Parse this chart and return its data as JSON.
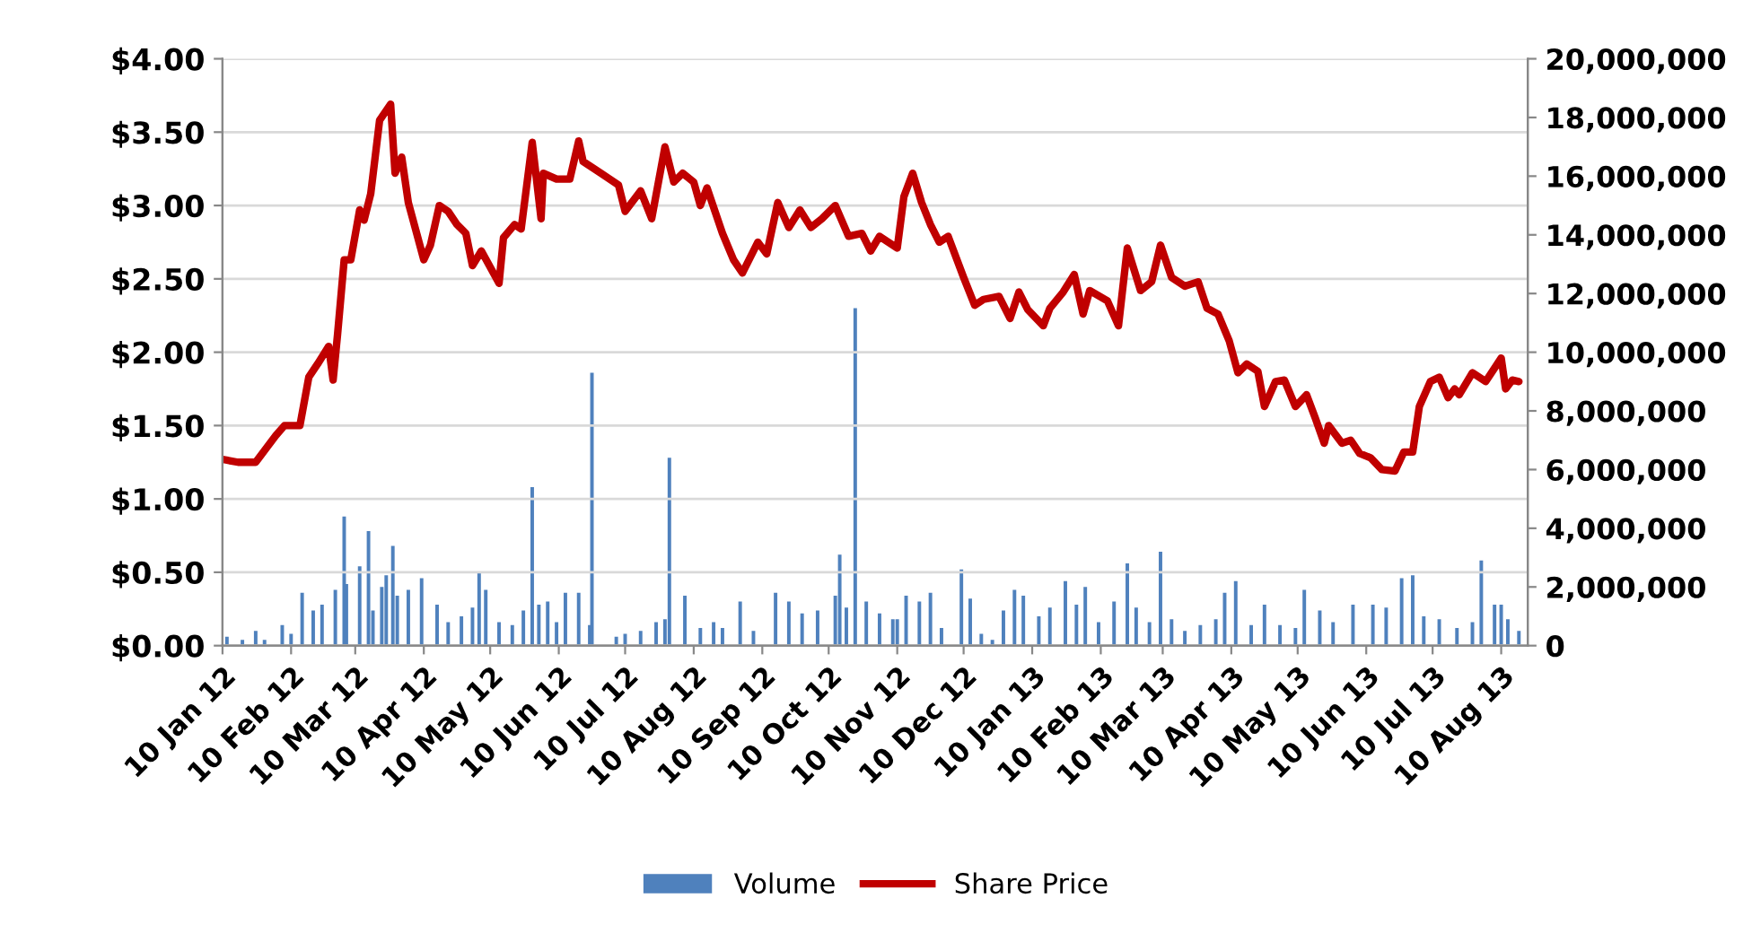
{
  "chart_data": {
    "type": "line",
    "xlim": [
      "2012-01-10",
      "2013-08-22"
    ],
    "xticks": [
      {
        "value": "2012-01-10",
        "label": "10 Jan 12"
      },
      {
        "value": "2012-02-10",
        "label": "10 Feb 12"
      },
      {
        "value": "2012-03-10",
        "label": "10 Mar 12"
      },
      {
        "value": "2012-04-10",
        "label": "10 Apr 12"
      },
      {
        "value": "2012-05-10",
        "label": "10 May 12"
      },
      {
        "value": "2012-06-10",
        "label": "10 Jun 12"
      },
      {
        "value": "2012-07-10",
        "label": "10 Jul 12"
      },
      {
        "value": "2012-08-10",
        "label": "10 Aug 12"
      },
      {
        "value": "2012-09-10",
        "label": "10 Sep 12"
      },
      {
        "value": "2012-10-10",
        "label": "10 Oct 12"
      },
      {
        "value": "2012-11-10",
        "label": "10 Nov 12"
      },
      {
        "value": "2012-12-10",
        "label": "10 Dec 12"
      },
      {
        "value": "2013-01-10",
        "label": "10 Jan 13"
      },
      {
        "value": "2013-02-10",
        "label": "10 Feb 13"
      },
      {
        "value": "2013-03-10",
        "label": "10 Mar 13"
      },
      {
        "value": "2013-04-10",
        "label": "10 Apr 13"
      },
      {
        "value": "2013-05-10",
        "label": "10 May 13"
      },
      {
        "value": "2013-06-10",
        "label": "10 Jun 13"
      },
      {
        "value": "2013-07-10",
        "label": "10 Jul 13"
      },
      {
        "value": "2013-08-10",
        "label": "10 Aug 13"
      }
    ],
    "ylim": [
      0,
      4
    ],
    "yticks": [
      {
        "value": 0,
        "label": "$0.00"
      },
      {
        "value": 0.5,
        "label": "$0.50"
      },
      {
        "value": 1,
        "label": "$1.00"
      },
      {
        "value": 1.5,
        "label": "$1.50"
      },
      {
        "value": 2,
        "label": "$2.00"
      },
      {
        "value": 2.5,
        "label": "$2.50"
      },
      {
        "value": 3,
        "label": "$3.00"
      },
      {
        "value": 3.5,
        "label": "$3.50"
      },
      {
        "value": 4,
        "label": "$4.00"
      }
    ],
    "y2lim": [
      0,
      20000000
    ],
    "y2ticks": [
      {
        "value": 0,
        "label": "0"
      },
      {
        "value": 2000000,
        "label": "2,000,000"
      },
      {
        "value": 4000000,
        "label": "4,000,000"
      },
      {
        "value": 6000000,
        "label": "6,000,000"
      },
      {
        "value": 8000000,
        "label": "8,000,000"
      },
      {
        "value": 10000000,
        "label": "10,000,000"
      },
      {
        "value": 12000000,
        "label": "12,000,000"
      },
      {
        "value": 14000000,
        "label": "14,000,000"
      },
      {
        "value": 16000000,
        "label": "16,000,000"
      },
      {
        "value": 18000000,
        "label": "18,000,000"
      },
      {
        "value": 20000000,
        "label": "20,000,000"
      }
    ],
    "grid": "y",
    "legend": "bottom",
    "series": [
      {
        "name": "Volume",
        "type": "bar",
        "axis": "y2",
        "color": "#4f81bd",
        "x": [
          "2012-01-12",
          "2012-01-19",
          "2012-01-25",
          "2012-01-29",
          "2012-02-06",
          "2012-02-10",
          "2012-02-15",
          "2012-02-20",
          "2012-02-24",
          "2012-03-01",
          "2012-03-05",
          "2012-03-06",
          "2012-03-12",
          "2012-03-16",
          "2012-03-18",
          "2012-03-22",
          "2012-03-24",
          "2012-03-27",
          "2012-03-29",
          "2012-04-03",
          "2012-04-09",
          "2012-04-16",
          "2012-04-21",
          "2012-04-27",
          "2012-05-02",
          "2012-05-05",
          "2012-05-08",
          "2012-05-14",
          "2012-05-20",
          "2012-05-25",
          "2012-05-29",
          "2012-06-01",
          "2012-06-05",
          "2012-06-09",
          "2012-06-13",
          "2012-06-19",
          "2012-06-24",
          "2012-06-25",
          "2012-07-06",
          "2012-07-10",
          "2012-07-17",
          "2012-07-24",
          "2012-07-28",
          "2012-07-30",
          "2012-08-06",
          "2012-08-13",
          "2012-08-19",
          "2012-08-23",
          "2012-08-31",
          "2012-09-06",
          "2012-09-16",
          "2012-09-22",
          "2012-09-28",
          "2012-10-05",
          "2012-10-13",
          "2012-10-15",
          "2012-10-18",
          "2012-10-22",
          "2012-10-27",
          "2012-11-02",
          "2012-11-08",
          "2012-11-10",
          "2012-11-14",
          "2012-11-20",
          "2012-11-25",
          "2012-11-30",
          "2012-12-09",
          "2012-12-13",
          "2012-12-18",
          "2012-12-23",
          "2012-12-28",
          "2013-01-02",
          "2013-01-06",
          "2013-01-13",
          "2013-01-18",
          "2013-01-25",
          "2013-01-30",
          "2013-02-03",
          "2013-02-09",
          "2013-02-16",
          "2013-02-22",
          "2013-02-26",
          "2013-03-04",
          "2013-03-09",
          "2013-03-14",
          "2013-03-20",
          "2013-03-27",
          "2013-04-03",
          "2013-04-07",
          "2013-04-12",
          "2013-04-19",
          "2013-04-25",
          "2013-05-02",
          "2013-05-09",
          "2013-05-13",
          "2013-05-20",
          "2013-05-26",
          "2013-06-04",
          "2013-06-13",
          "2013-06-19",
          "2013-06-26",
          "2013-07-01",
          "2013-07-06",
          "2013-07-13",
          "2013-07-21",
          "2013-07-28",
          "2013-08-01",
          "2013-08-07",
          "2013-08-10",
          "2013-08-13",
          "2013-08-18"
        ],
        "values": [
          300000,
          200000,
          500000,
          200000,
          700000,
          400000,
          1800000,
          1200000,
          1400000,
          1900000,
          4400000,
          2100000,
          2700000,
          3900000,
          1200000,
          2000000,
          2400000,
          3400000,
          1700000,
          1900000,
          2300000,
          1400000,
          800000,
          1000000,
          1300000,
          2500000,
          1900000,
          800000,
          700000,
          1200000,
          5400000,
          1400000,
          1500000,
          800000,
          1800000,
          1800000,
          700000,
          9300000,
          300000,
          400000,
          500000,
          800000,
          900000,
          6400000,
          1700000,
          600000,
          800000,
          600000,
          1500000,
          500000,
          1800000,
          1500000,
          1100000,
          1200000,
          1700000,
          3100000,
          1300000,
          11500000,
          1500000,
          1100000,
          900000,
          900000,
          1700000,
          1500000,
          1800000,
          600000,
          2600000,
          1600000,
          400000,
          200000,
          1200000,
          1900000,
          1700000,
          1000000,
          1300000,
          2200000,
          1400000,
          2000000,
          800000,
          1500000,
          2800000,
          1300000,
          800000,
          3200000,
          900000,
          500000,
          700000,
          900000,
          1800000,
          2200000,
          700000,
          1400000,
          700000,
          600000,
          1900000,
          1200000,
          800000,
          1400000,
          1400000,
          1300000,
          2300000,
          2400000,
          1000000,
          900000,
          600000,
          800000,
          2900000,
          1400000,
          1400000,
          900000,
          500000
        ]
      },
      {
        "name": "Share Price",
        "axis": "y",
        "color": "#c00000",
        "x": [
          "2012-01-10",
          "2012-01-17",
          "2012-01-25",
          "2012-02-03",
          "2012-02-07",
          "2012-02-14",
          "2012-02-18",
          "2012-02-22",
          "2012-02-27",
          "2012-02-29",
          "2012-03-02",
          "2012-03-05",
          "2012-03-08",
          "2012-03-12",
          "2012-03-14",
          "2012-03-17",
          "2012-03-21",
          "2012-03-26",
          "2012-03-28",
          "2012-03-31",
          "2012-04-03",
          "2012-04-10",
          "2012-04-13",
          "2012-04-17",
          "2012-04-21",
          "2012-04-25",
          "2012-04-29",
          "2012-05-02",
          "2012-05-06",
          "2012-05-14",
          "2012-05-16",
          "2012-05-21",
          "2012-05-24",
          "2012-05-29",
          "2012-06-02",
          "2012-06-03",
          "2012-06-09",
          "2012-06-15",
          "2012-06-19",
          "2012-06-21",
          "2012-06-29",
          "2012-07-07",
          "2012-07-10",
          "2012-07-17",
          "2012-07-22",
          "2012-07-28",
          "2012-08-01",
          "2012-08-05",
          "2012-08-10",
          "2012-08-13",
          "2012-08-16",
          "2012-08-23",
          "2012-08-28",
          "2012-09-01",
          "2012-09-08",
          "2012-09-12",
          "2012-09-17",
          "2012-09-22",
          "2012-09-27",
          "2012-10-02",
          "2012-10-07",
          "2012-10-13",
          "2012-10-19",
          "2012-10-25",
          "2012-10-29",
          "2012-11-02",
          "2012-11-10",
          "2012-11-13",
          "2012-11-17",
          "2012-11-21",
          "2012-11-25",
          "2012-11-29",
          "2012-12-03",
          "2012-12-10",
          "2012-12-15",
          "2012-12-19",
          "2012-12-26",
          "2012-12-31",
          "2013-01-04",
          "2013-01-08",
          "2013-01-15",
          "2013-01-18",
          "2013-01-24",
          "2013-01-29",
          "2013-02-02",
          "2013-02-05",
          "2013-02-13",
          "2013-02-18",
          "2013-02-22",
          "2013-02-28",
          "2013-03-05",
          "2013-03-09",
          "2013-03-14",
          "2013-03-20",
          "2013-03-26",
          "2013-03-30",
          "2013-04-04",
          "2013-04-09",
          "2013-04-13",
          "2013-04-17",
          "2013-04-22",
          "2013-04-25",
          "2013-04-30",
          "2013-05-04",
          "2013-05-09",
          "2013-05-14",
          "2013-05-18",
          "2013-05-22",
          "2013-05-24",
          "2013-05-30",
          "2013-06-03",
          "2013-06-07",
          "2013-06-12",
          "2013-06-17",
          "2013-06-23",
          "2013-06-27",
          "2013-07-01",
          "2013-07-04",
          "2013-07-09",
          "2013-07-13",
          "2013-07-17",
          "2013-07-20",
          "2013-07-22",
          "2013-07-28",
          "2013-08-03",
          "2013-08-10",
          "2013-08-12",
          "2013-08-15",
          "2013-08-18"
        ],
        "values": [
          1.27,
          1.25,
          1.25,
          1.43,
          1.5,
          1.5,
          1.83,
          1.92,
          2.04,
          1.81,
          2.12,
          2.63,
          2.63,
          2.97,
          2.9,
          3.08,
          3.58,
          3.69,
          3.22,
          3.33,
          3.02,
          2.63,
          2.73,
          3.0,
          2.96,
          2.87,
          2.81,
          2.59,
          2.69,
          2.47,
          2.78,
          2.87,
          2.84,
          3.43,
          2.91,
          3.22,
          3.18,
          3.18,
          3.44,
          3.3,
          3.22,
          3.14,
          2.96,
          3.1,
          2.91,
          3.4,
          3.16,
          3.22,
          3.16,
          3.0,
          3.12,
          2.81,
          2.63,
          2.54,
          2.75,
          2.67,
          3.02,
          2.85,
          2.97,
          2.85,
          2.91,
          3.0,
          2.79,
          2.81,
          2.69,
          2.79,
          2.71,
          3.06,
          3.22,
          3.02,
          2.87,
          2.75,
          2.79,
          2.51,
          2.32,
          2.36,
          2.38,
          2.23,
          2.41,
          2.29,
          2.18,
          2.3,
          2.41,
          2.53,
          2.26,
          2.42,
          2.35,
          2.18,
          2.71,
          2.42,
          2.48,
          2.73,
          2.51,
          2.45,
          2.48,
          2.3,
          2.26,
          2.08,
          1.86,
          1.92,
          1.87,
          1.63,
          1.8,
          1.81,
          1.63,
          1.71,
          1.55,
          1.38,
          1.5,
          1.38,
          1.4,
          1.31,
          1.28,
          1.2,
          1.19,
          1.32,
          1.32,
          1.63,
          1.8,
          1.83,
          1.69,
          1.75,
          1.71,
          1.86,
          1.8,
          1.96,
          1.75,
          1.81,
          1.8
        ]
      }
    ]
  }
}
